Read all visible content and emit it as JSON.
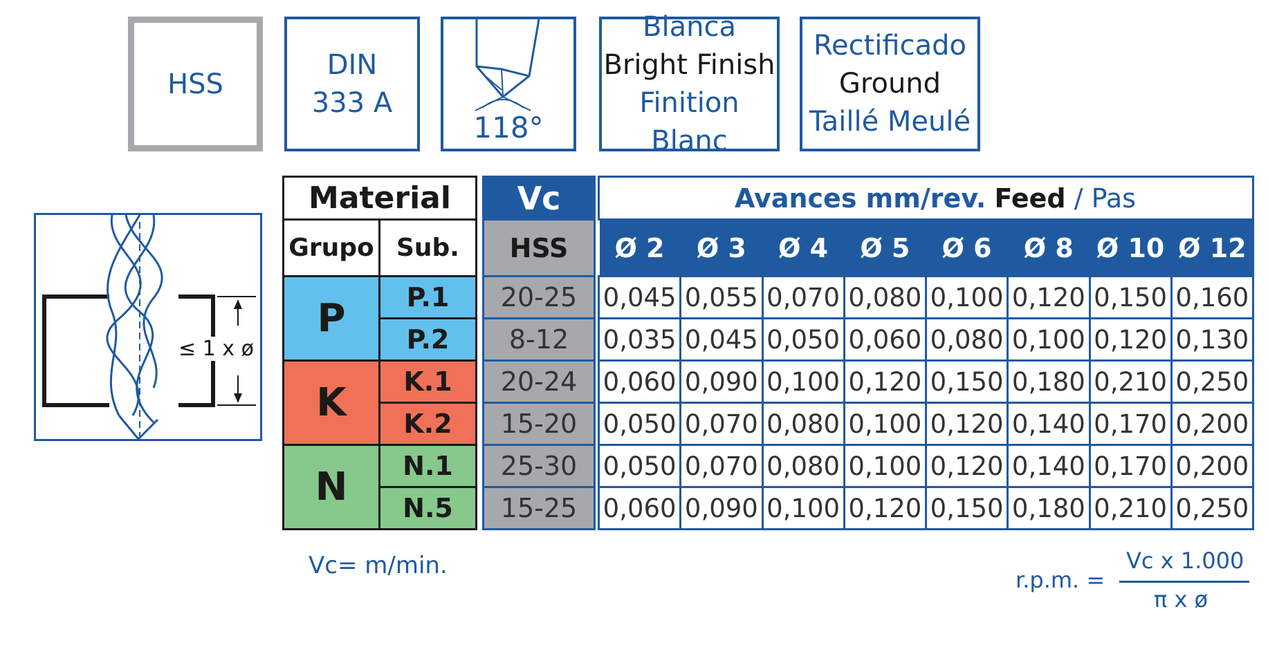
{
  "specs": {
    "material": "HSS",
    "standard_line1": "DIN",
    "standard_line2": "333 A",
    "point_angle": "118°",
    "finish_es": "Blanca",
    "finish_en": "Bright Finish",
    "finish_fr": "Finition Blanc",
    "ground_es": "Rectificado",
    "ground_en": "Ground",
    "ground_fr": "Taillé Meulé"
  },
  "depth_label": "≤ 1 x ø",
  "material_table": {
    "title": "Material",
    "col_group": "Grupo",
    "col_sub": "Sub.",
    "groups": [
      {
        "name": "P",
        "color": "#62c0ec",
        "subs": [
          "P.1",
          "P.2"
        ]
      },
      {
        "name": "K",
        "color": "#f07157",
        "subs": [
          "K.1",
          "K.2"
        ]
      },
      {
        "name": "N",
        "color": "#86c98b",
        "subs": [
          "N.1",
          "N.5"
        ]
      }
    ]
  },
  "vc_table": {
    "title": "Vc",
    "sub_title": "HSS",
    "values": [
      "20-25",
      "8-12",
      "20-24",
      "15-20",
      "25-30",
      "15-25"
    ]
  },
  "feed_table": {
    "title_es": "Avances mm/rev.",
    "title_en": "Feed",
    "title_sep": "/",
    "title_fr": "Pas",
    "diameters": [
      "Ø 2",
      "Ø 3",
      "Ø 4",
      "Ø 5",
      "Ø 6",
      "Ø 8",
      "Ø 10",
      "Ø 12"
    ],
    "rows": [
      [
        "0,045",
        "0,055",
        "0,070",
        "0,080",
        "0,100",
        "0,120",
        "0,150",
        "0,160"
      ],
      [
        "0,035",
        "0,045",
        "0,050",
        "0,060",
        "0,080",
        "0,100",
        "0,120",
        "0,130"
      ],
      [
        "0,060",
        "0,090",
        "0,100",
        "0,120",
        "0,150",
        "0,180",
        "0,210",
        "0,250"
      ],
      [
        "0,050",
        "0,070",
        "0,080",
        "0,100",
        "0,120",
        "0,140",
        "0,170",
        "0,200"
      ],
      [
        "0,050",
        "0,070",
        "0,080",
        "0,100",
        "0,120",
        "0,140",
        "0,170",
        "0,200"
      ],
      [
        "0,060",
        "0,090",
        "0,100",
        "0,120",
        "0,150",
        "0,180",
        "0,210",
        "0,250"
      ]
    ]
  },
  "notes": {
    "vc_unit": "Vc= m/min.",
    "rpm_label": "r.p.m. =",
    "rpm_numerator": "Vc x 1.000",
    "rpm_denominator": "π x ø"
  }
}
